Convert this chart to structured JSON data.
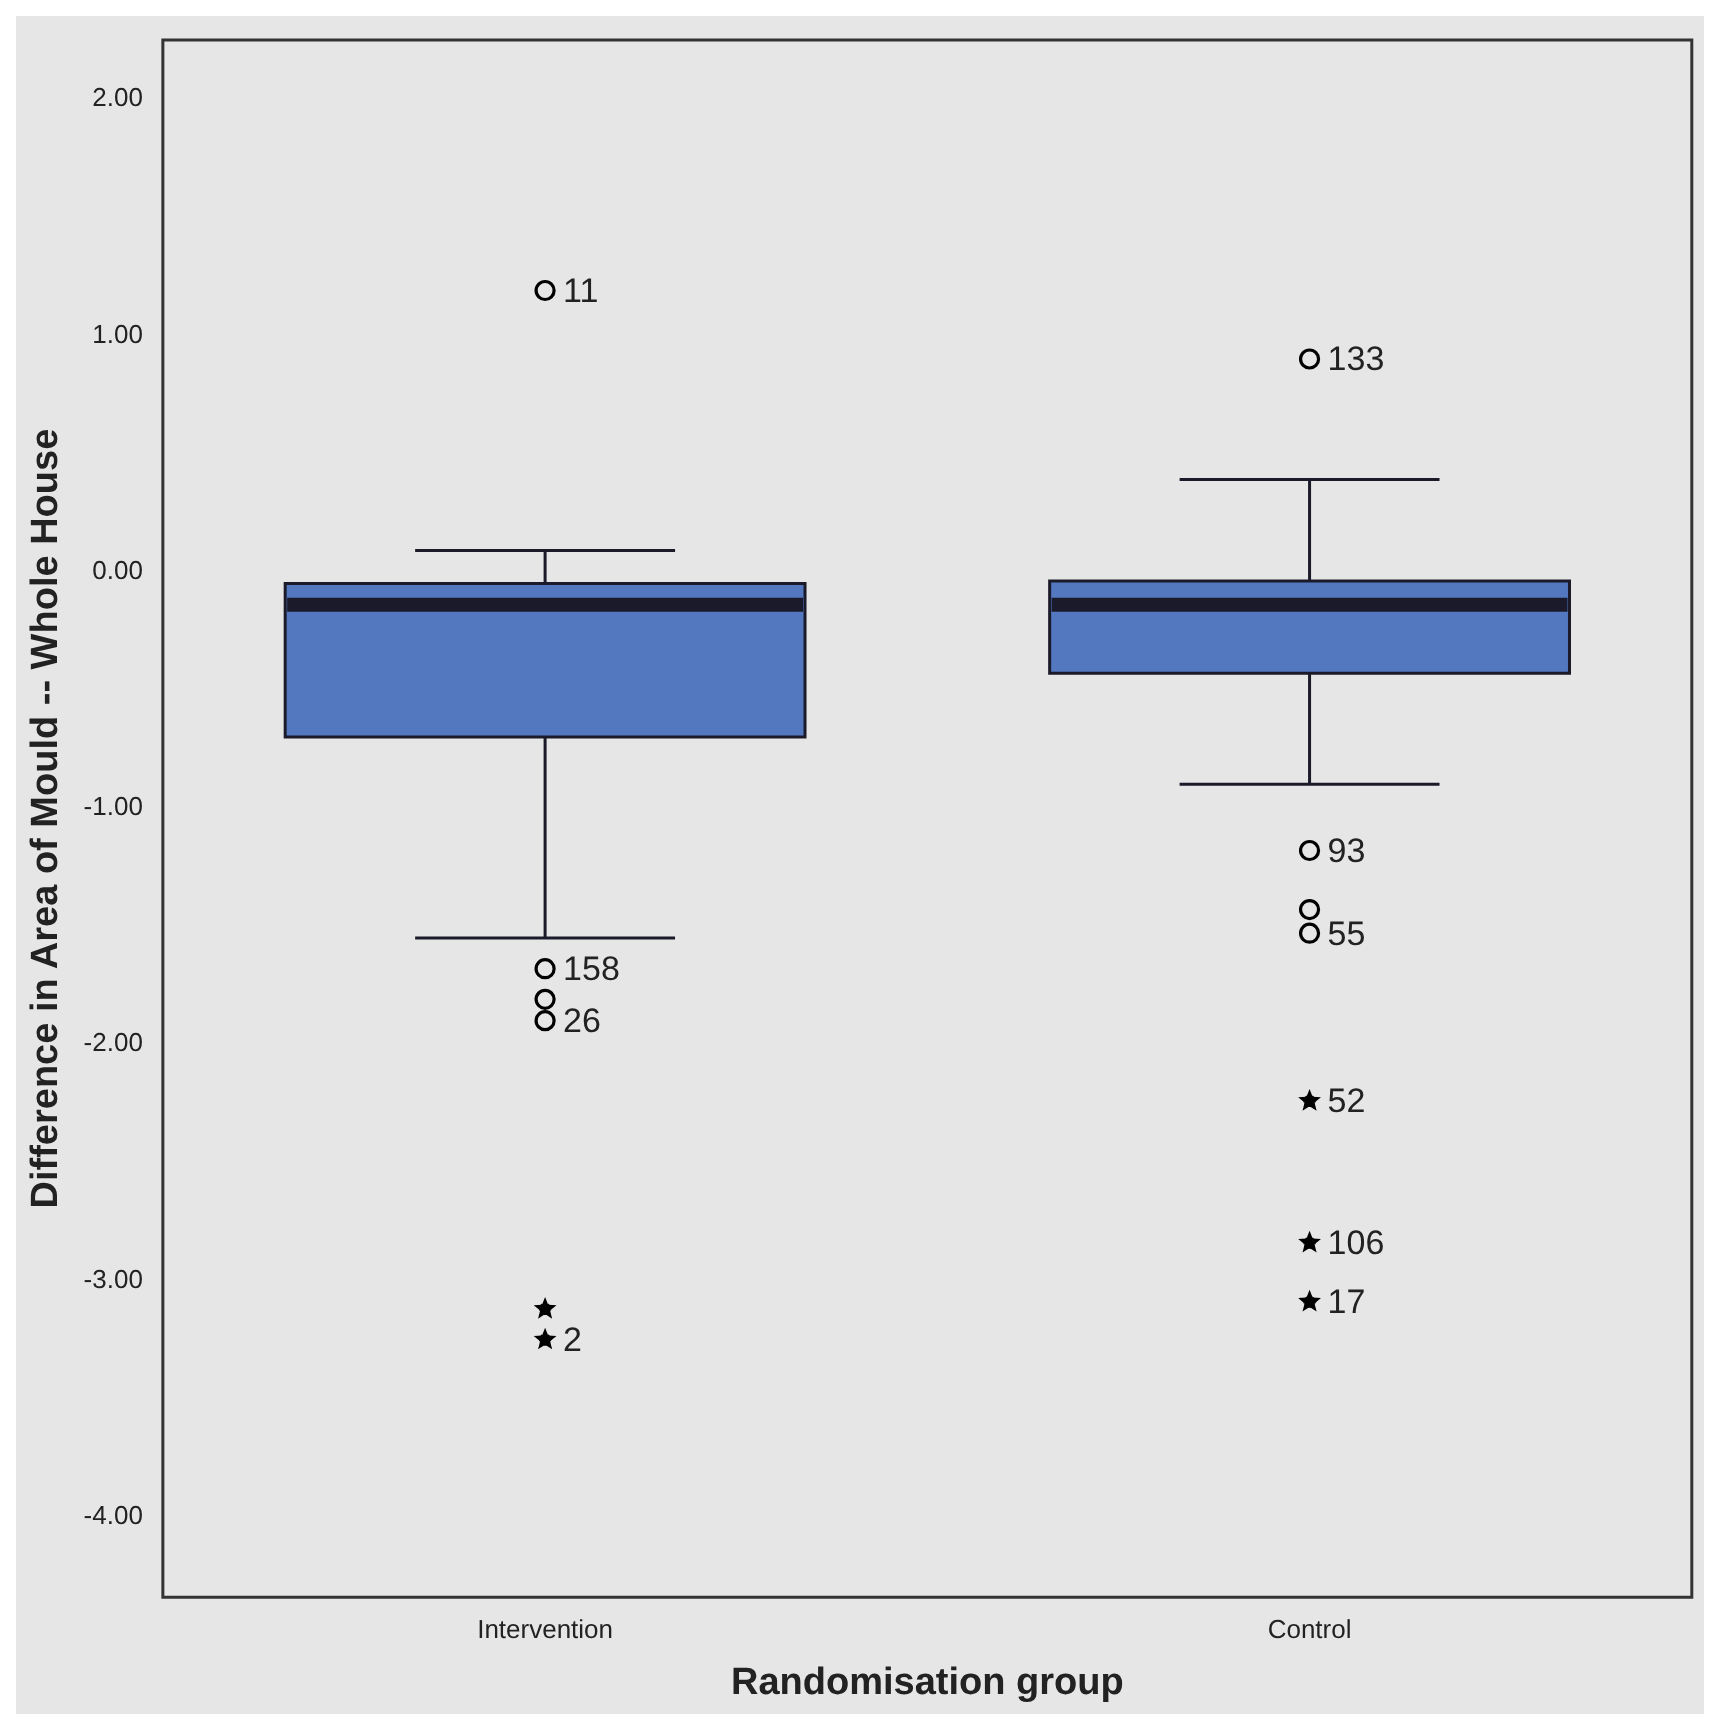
{
  "chart_data": {
    "type": "box",
    "xlabel": "Randomisation group",
    "ylabel": "Difference in Area of Mould -- Whole House",
    "categories": [
      "Intervention",
      "Control"
    ],
    "ylim": [
      -4.34,
      2.25
    ],
    "yticks": [
      {
        "value": 2,
        "label": "2.00"
      },
      {
        "value": 1,
        "label": "1.00"
      },
      {
        "value": 0,
        "label": "0.00"
      },
      {
        "value": -1,
        "label": "-1.00"
      },
      {
        "value": -2,
        "label": "-2.00"
      },
      {
        "value": -3,
        "label": "-3.00"
      },
      {
        "value": -4,
        "label": "-4.00"
      }
    ],
    "series": [
      {
        "type": "box",
        "color": "#5478c0",
        "boxes": [
          {
            "low": -1.55,
            "q1": -0.7,
            "median": -0.14,
            "q3": -0.05,
            "high": 0.09
          },
          {
            "low": -0.9,
            "q1": -0.43,
            "median": -0.14,
            "q3": -0.04,
            "high": 0.39
          }
        ]
      },
      {
        "type": "scatter",
        "marker": "circle",
        "color": "#000000",
        "x": [
          "Intervention",
          "Intervention",
          "Intervention",
          "Intervention",
          "Control",
          "Control",
          "Control",
          "Control"
        ],
        "values": [
          1.19,
          -1.68,
          -1.81,
          -1.9,
          0.9,
          -1.18,
          -1.43,
          -1.53
        ]
      },
      {
        "type": "scatter",
        "marker": "star",
        "color": "#000000",
        "x": [
          "Intervention",
          "Intervention",
          "Control",
          "Control",
          "Control"
        ],
        "values": [
          -3.12,
          -3.25,
          -2.24,
          -2.84,
          -3.09
        ]
      }
    ],
    "annotations": [
      {
        "text": "11",
        "x": "Intervention",
        "y": 1.19
      },
      {
        "text": "158",
        "x": "Intervention",
        "y": -1.68
      },
      {
        "text": "26",
        "x": "Intervention",
        "y": -1.9
      },
      {
        "text": "2",
        "x": "Intervention",
        "y": -3.25
      },
      {
        "text": "133",
        "x": "Control",
        "y": 0.9
      },
      {
        "text": "93",
        "x": "Control",
        "y": -1.18
      },
      {
        "text": "55",
        "x": "Control",
        "y": -1.53
      },
      {
        "text": "52",
        "x": "Control",
        "y": -2.24
      },
      {
        "text": "106",
        "x": "Control",
        "y": -2.84
      },
      {
        "text": "17",
        "x": "Control",
        "y": -3.09
      }
    ],
    "grid": false,
    "legend": false
  }
}
